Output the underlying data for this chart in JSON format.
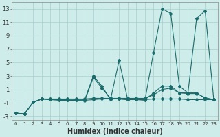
{
  "xlabel": "Humidex (Indice chaleur)",
  "background_color": "#ceecea",
  "grid_color": "#aed4d1",
  "line_color": "#1a6b6b",
  "lines": [
    [
      -2.5,
      -2.6,
      -0.9,
      -0.4,
      -0.5,
      -0.5,
      -0.5,
      -0.6,
      -0.5,
      3.0,
      1.5,
      -0.5,
      5.3,
      -0.5,
      -0.5,
      -0.6,
      6.5,
      13.0,
      12.3,
      1.5,
      0.5,
      11.5,
      12.7,
      -0.5
    ],
    [
      -2.5,
      -2.6,
      -0.9,
      -0.4,
      -0.5,
      -0.5,
      -0.6,
      -0.6,
      -0.7,
      2.8,
      1.2,
      -0.3,
      -0.4,
      -0.5,
      -0.5,
      -0.5,
      0.5,
      1.5,
      1.5,
      0.5,
      0.5,
      0.5,
      -0.3,
      -0.5
    ],
    [
      -2.5,
      -2.6,
      -0.9,
      -0.4,
      -0.5,
      -0.6,
      -0.6,
      -0.5,
      -0.6,
      -0.5,
      -0.4,
      -0.4,
      -0.4,
      -0.5,
      -0.5,
      -0.5,
      -0.4,
      -0.4,
      -0.4,
      -0.4,
      -0.5,
      -0.5,
      -0.5,
      -0.5
    ],
    [
      -2.5,
      -2.6,
      -0.9,
      -0.4,
      -0.4,
      -0.4,
      -0.4,
      -0.4,
      -0.4,
      -0.3,
      -0.3,
      -0.3,
      -0.3,
      -0.3,
      -0.3,
      -0.3,
      0.2,
      1.0,
      1.2,
      0.5,
      0.4,
      0.4,
      -0.2,
      -0.5
    ]
  ],
  "xlim": [
    -0.5,
    23.5
  ],
  "ylim": [
    -3.5,
    14.0
  ],
  "yticks": [
    -3,
    -1,
    1,
    3,
    5,
    7,
    9,
    11,
    13
  ],
  "xticks": [
    0,
    1,
    2,
    3,
    4,
    5,
    6,
    7,
    8,
    9,
    10,
    11,
    12,
    13,
    14,
    15,
    16,
    17,
    18,
    19,
    20,
    21,
    22,
    23
  ],
  "marker": "D",
  "markersize": 2.0,
  "linewidth": 0.8
}
